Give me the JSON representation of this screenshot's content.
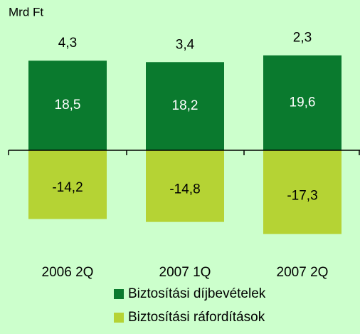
{
  "chart_data": {
    "type": "bar",
    "y_label": "Mrd Ft",
    "categories": [
      "2006 2Q",
      "2007 1Q",
      "2007 2Q"
    ],
    "series": [
      {
        "name": "Biztosítási ráfordítások",
        "color": "#b5d334",
        "values": [
          -14.2,
          -14.8,
          -17.3
        ],
        "value_labels": [
          "-14,2",
          "-14,8",
          "-17,3"
        ]
      },
      {
        "name": "Biztosítási díjbevételek",
        "color": "#0a7a2e",
        "values": [
          18.5,
          18.2,
          19.6
        ],
        "value_labels": [
          "18,5",
          "18,2",
          "19,6"
        ]
      }
    ],
    "totals": {
      "values": [
        4.3,
        3.4,
        2.3
      ],
      "value_labels": [
        "4,3",
        "3,4",
        "2,3"
      ]
    },
    "ylim": [
      -20,
      25
    ]
  }
}
